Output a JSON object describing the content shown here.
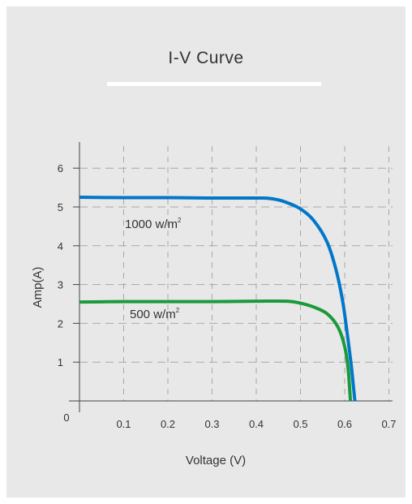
{
  "chart_data": {
    "type": "line",
    "title": "I-V Curve",
    "xlabel": "Voltage (V)",
    "ylabel": "Amp(A)",
    "xlim": [
      0,
      0.72
    ],
    "ylim": [
      0,
      6.5
    ],
    "origin_label": "0",
    "x_ticks": [
      "0.1",
      "0.2",
      "0.3",
      "0.4",
      "0.5",
      "0.6",
      "0.7"
    ],
    "y_ticks": [
      "1",
      "2",
      "3",
      "4",
      "5",
      "6"
    ],
    "grid": true,
    "series": [
      {
        "name": "1000 w/m",
        "name_superscript": "2",
        "color": "#0077c8",
        "x": [
          0,
          0.1,
          0.2,
          0.3,
          0.4,
          0.43,
          0.46,
          0.5,
          0.53,
          0.56,
          0.58,
          0.595,
          0.605,
          0.615,
          0.623
        ],
        "y": [
          5.25,
          5.24,
          5.24,
          5.23,
          5.23,
          5.22,
          5.15,
          4.95,
          4.65,
          4.1,
          3.4,
          2.6,
          1.8,
          0.9,
          0.0
        ]
      },
      {
        "name": "500 w/m",
        "name_superscript": "2",
        "color": "#1a9a3a",
        "x": [
          0,
          0.1,
          0.2,
          0.3,
          0.4,
          0.47,
          0.5,
          0.53,
          0.56,
          0.585,
          0.6,
          0.608,
          0.613
        ],
        "y": [
          2.55,
          2.56,
          2.56,
          2.56,
          2.57,
          2.57,
          2.52,
          2.42,
          2.25,
          1.9,
          1.4,
          0.8,
          0.0
        ]
      }
    ]
  }
}
